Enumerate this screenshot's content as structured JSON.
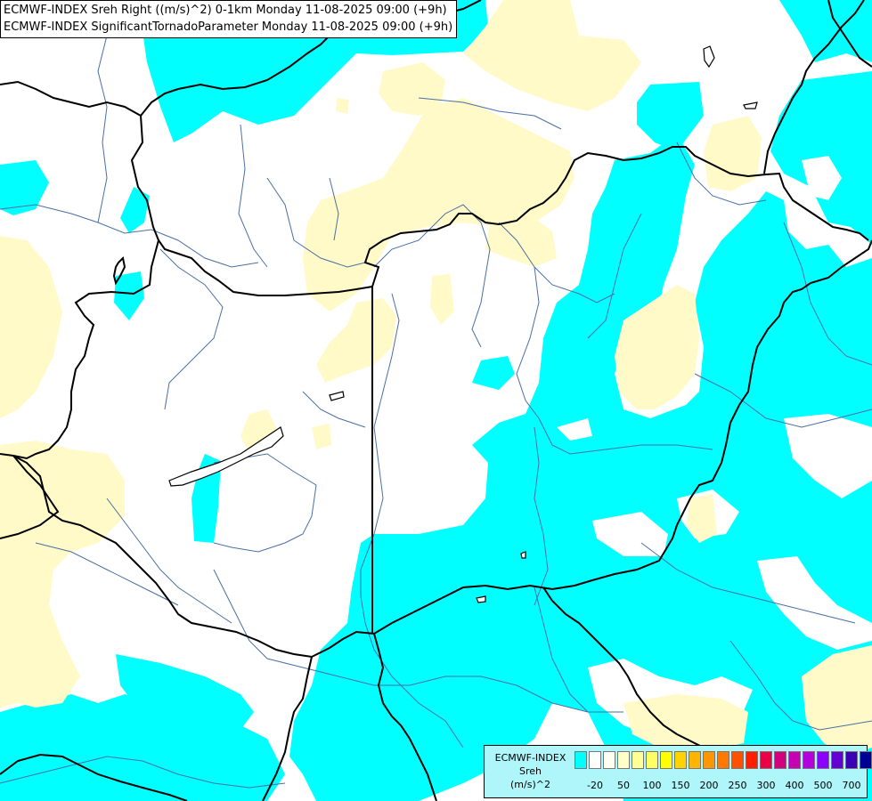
{
  "title": {
    "line1": "ECMWF-INDEX Sreh Right ((m/s)^2) 0-1km Monday 11-08-2025 09:00 (+9h)",
    "line2": "ECMWF-INDEX SignificantTornadoParameter Monday 11-08-2025 09:00 (+9h)"
  },
  "legend": {
    "source": "ECMWF-INDEX",
    "parameter": "Sreh",
    "unit": "(m/s)^2",
    "colors": [
      "#00ffff",
      "#ffffff",
      "#fffff0",
      "#ffffc8",
      "#ffff96",
      "#ffff64",
      "#ffff00",
      "#ffd200",
      "#ffb400",
      "#ff9600",
      "#ff7800",
      "#ff5000",
      "#ff1e00",
      "#eb0046",
      "#d2007d",
      "#c800b4",
      "#b400dc",
      "#8c00ff",
      "#6400d2",
      "#3c00b4",
      "#000096"
    ],
    "ticks": [
      "-20",
      "50",
      "100",
      "150",
      "200",
      "250",
      "300",
      "400",
      "500",
      "700"
    ]
  },
  "colors": {
    "cyan": "#00ffff",
    "pale_yellow": "#fffac8",
    "border": "#000000",
    "river": "#4a6fa5"
  }
}
